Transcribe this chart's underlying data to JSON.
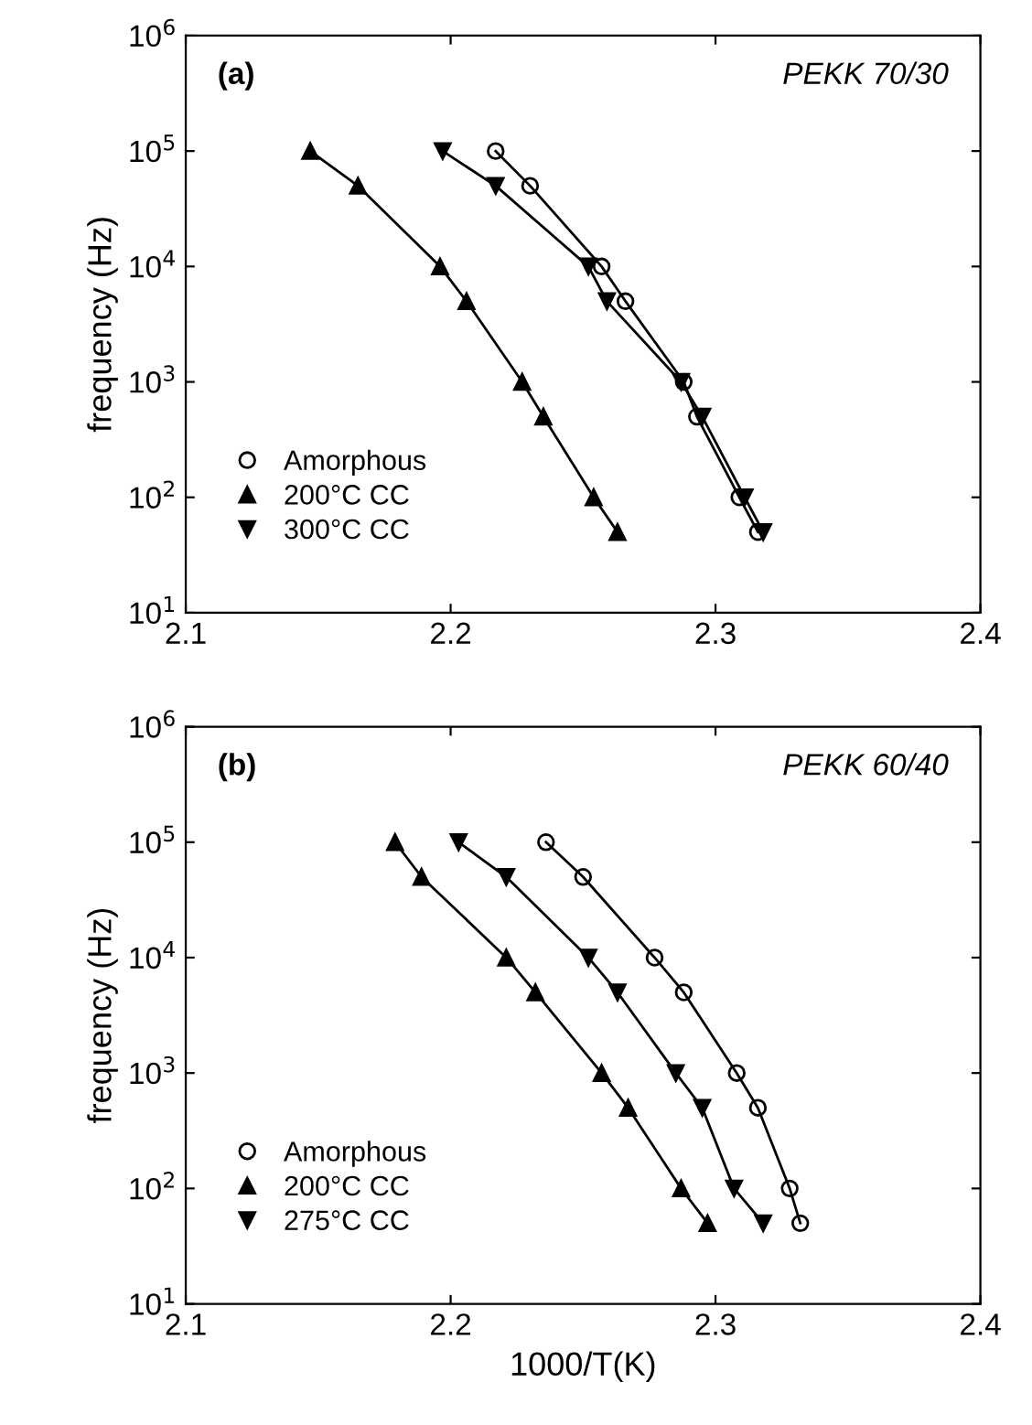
{
  "chart_data": [
    {
      "type": "line",
      "annotations": [
        "(a)",
        "PEKK 70/30"
      ],
      "ylabel": "frequency (Hz)",
      "log": "y",
      "legend": "bottom left",
      "grid": false,
      "xlim": [
        2.1,
        2.4
      ],
      "xticks": [
        2.1,
        2.2,
        2.3,
        2.4
      ],
      "ylim": [
        10,
        1000000
      ],
      "yticks": [
        {
          "value": 10,
          "label": "10$^{1}$"
        },
        {
          "value": 100,
          "label": "10$^{2}$"
        },
        {
          "value": 1000,
          "label": "10$^{3}$"
        },
        {
          "value": 10000,
          "label": "10$^{4}$"
        },
        {
          "value": 100000,
          "label": "10$^{5}$"
        },
        {
          "value": 1000000,
          "label": "10$^{6}$"
        }
      ],
      "series": [
        {
          "name": "Amorphous",
          "color": "#000000",
          "marker": "circle",
          "x": [
            2.217,
            2.23,
            2.257,
            2.266,
            2.288,
            2.293,
            2.309,
            2.316
          ],
          "values": [
            100000,
            50000,
            10000,
            5000,
            1000,
            500,
            100,
            50
          ]
        },
        {
          "name": "200°C CC",
          "color": "#000000",
          "marker": "triangle",
          "x": [
            2.147,
            2.165,
            2.196,
            2.206,
            2.227,
            2.235,
            2.254,
            2.263
          ],
          "values": [
            100000,
            50000,
            10000,
            5000,
            1000,
            500,
            100,
            50
          ]
        },
        {
          "name": "300°C CC",
          "color": "#000000",
          "marker": "triangle_down",
          "x": [
            2.197,
            2.217,
            2.252,
            2.259,
            2.287,
            2.295,
            2.311,
            2.318
          ],
          "values": [
            100000,
            50000,
            10000,
            5000,
            1000,
            500,
            100,
            50
          ]
        }
      ]
    },
    {
      "type": "line",
      "annotations": [
        "(b)",
        "PEKK 60/40"
      ],
      "xlabel": "1000/T(K)",
      "ylabel": "frequency (Hz)",
      "log": "y",
      "legend": "bottom left",
      "grid": false,
      "xlim": [
        2.1,
        2.4
      ],
      "xticks": [
        2.1,
        2.2,
        2.3,
        2.4
      ],
      "ylim": [
        10,
        1000000
      ],
      "yticks": [
        {
          "value": 10,
          "label": "10$^{1}$"
        },
        {
          "value": 100,
          "label": "10$^{2}$"
        },
        {
          "value": 1000,
          "label": "10$^{3}$"
        },
        {
          "value": 10000,
          "label": "10$^{4}$"
        },
        {
          "value": 100000,
          "label": "10$^{5}$"
        },
        {
          "value": 1000000,
          "label": "10$^{6}$"
        }
      ],
      "series": [
        {
          "name": "Amorphous",
          "color": "#000000",
          "marker": "circle",
          "x": [
            2.236,
            2.25,
            2.277,
            2.288,
            2.308,
            2.316,
            2.328,
            2.332
          ],
          "values": [
            100000,
            50000,
            10000,
            5000,
            1000,
            500,
            100,
            50
          ]
        },
        {
          "name": "200°C CC",
          "color": "#000000",
          "marker": "triangle",
          "x": [
            2.179,
            2.189,
            2.221,
            2.232,
            2.257,
            2.267,
            2.287,
            2.297
          ],
          "values": [
            100000,
            50000,
            10000,
            5000,
            1000,
            500,
            100,
            50
          ]
        },
        {
          "name": "275°C CC",
          "color": "#000000",
          "marker": "triangle_down",
          "x": [
            2.203,
            2.221,
            2.252,
            2.263,
            2.285,
            2.295,
            2.307,
            2.318
          ],
          "values": [
            100000,
            50000,
            10000,
            5000,
            1000,
            500,
            100,
            50
          ]
        }
      ]
    }
  ]
}
